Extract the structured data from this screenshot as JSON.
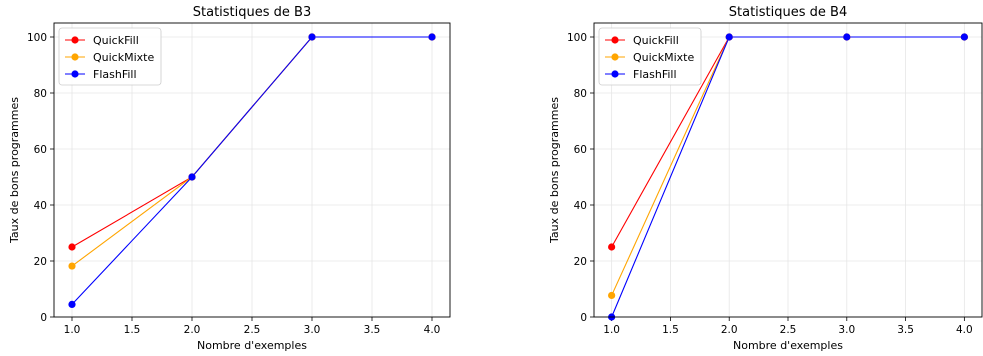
{
  "chart_data": [
    {
      "type": "line",
      "title": "Statistiques de B3",
      "xlabel": "Nombre d'exemples",
      "ylabel": "Taux de bons programmes",
      "xlim": [
        0.85,
        4.15
      ],
      "ylim": [
        0,
        105
      ],
      "xticks": [
        1.0,
        1.5,
        2.0,
        2.5,
        3.0,
        3.5,
        4.0
      ],
      "xtick_labels": [
        "1.0",
        "1.5",
        "2.0",
        "2.5",
        "3.0",
        "3.5",
        "4.0"
      ],
      "yticks": [
        0,
        20,
        40,
        60,
        80,
        100
      ],
      "ytick_labels": [
        "0",
        "20",
        "40",
        "60",
        "80",
        "100"
      ],
      "grid": true,
      "legend_position": "top-left",
      "x": [
        1.0,
        2.0,
        3.0,
        4.0
      ],
      "series": [
        {
          "name": "QuickFill",
          "color": "#ff0000",
          "values": [
            25,
            50,
            100,
            100
          ]
        },
        {
          "name": "QuickMixte",
          "color": "#ffa500",
          "values": [
            18.2,
            50,
            100,
            100
          ]
        },
        {
          "name": "FlashFill",
          "color": "#0000ff",
          "values": [
            4.5,
            50,
            100,
            100
          ]
        }
      ]
    },
    {
      "type": "line",
      "title": "Statistiques de B4",
      "xlabel": "Nombre d'exemples",
      "ylabel": "Taux de bons programmes",
      "xlim": [
        0.85,
        4.15
      ],
      "ylim": [
        0,
        105
      ],
      "xticks": [
        1.0,
        1.5,
        2.0,
        2.5,
        3.0,
        3.5,
        4.0
      ],
      "xtick_labels": [
        "1.0",
        "1.5",
        "2.0",
        "2.5",
        "3.0",
        "3.5",
        "4.0"
      ],
      "yticks": [
        0,
        20,
        40,
        60,
        80,
        100
      ],
      "ytick_labels": [
        "0",
        "20",
        "40",
        "60",
        "80",
        "100"
      ],
      "grid": true,
      "legend_position": "top-left",
      "x": [
        1.0,
        2.0,
        3.0,
        4.0
      ],
      "series": [
        {
          "name": "QuickFill",
          "color": "#ff0000",
          "values": [
            25,
            100,
            100,
            100
          ]
        },
        {
          "name": "QuickMixte",
          "color": "#ffa500",
          "values": [
            7.7,
            100,
            100,
            100
          ]
        },
        {
          "name": "FlashFill",
          "color": "#0000ff",
          "values": [
            0,
            100,
            100,
            100
          ]
        }
      ]
    }
  ]
}
